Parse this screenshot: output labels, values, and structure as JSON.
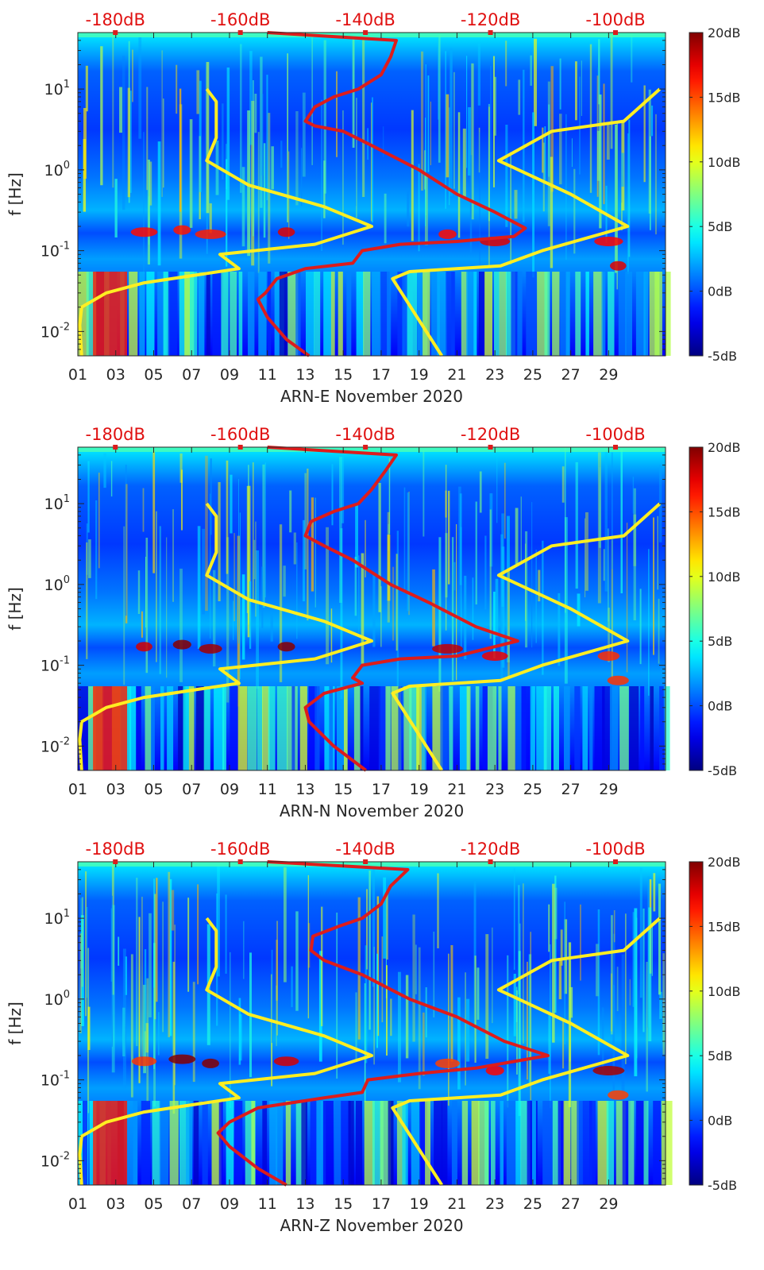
{
  "colors": {
    "curve_red": "#dd1c1c",
    "curve_yellow": "#ffee22",
    "top_axis_text": "#e01010",
    "axis_text": "#262626"
  },
  "colormap": "jet",
  "chart_data": [
    {
      "type": "heatmap",
      "panel": "ARN-E",
      "xlabel": "ARN-E November 2020",
      "ylabel": "f [Hz]",
      "x_ticks": [
        "01",
        "03",
        "05",
        "07",
        "09",
        "11",
        "13",
        "15",
        "17",
        "19",
        "21",
        "23",
        "25",
        "27",
        "29"
      ],
      "y_ticks": [
        "10^-2",
        "10^-1",
        "10^0",
        "10^1"
      ],
      "ylim": [
        0.005,
        50
      ],
      "y_scale": "log",
      "top_axis_ticks": [
        "-180dB",
        "-160dB",
        "-140dB",
        "-120dB",
        "-100dB"
      ],
      "top_axis_range": [
        -186,
        -92
      ],
      "colorbar_ticks": [
        "20dB",
        "15dB",
        "10dB",
        "5dB",
        "0dB",
        "-5dB"
      ],
      "colorbar_range": [
        -5,
        20
      ],
      "series": [
        {
          "color": "red",
          "points": [
            [
              12.2,
              0.005
            ],
            [
              11.0,
              0.008
            ],
            [
              10.0,
              0.015
            ],
            [
              9.5,
              0.025
            ],
            [
              9.9,
              0.03
            ],
            [
              10.5,
              0.045
            ],
            [
              12.0,
              0.06
            ],
            [
              14.5,
              0.07
            ],
            [
              15.0,
              0.1
            ],
            [
              17.0,
              0.12
            ],
            [
              20.0,
              0.13
            ],
            [
              23.0,
              0.15
            ],
            [
              23.6,
              0.19
            ],
            [
              22.0,
              0.3
            ],
            [
              20.0,
              0.5
            ],
            [
              18.0,
              1.0
            ],
            [
              15.5,
              2.0
            ],
            [
              14.0,
              3.0
            ],
            [
              12.5,
              3.5
            ],
            [
              12.0,
              4.0
            ],
            [
              12.5,
              6.0
            ],
            [
              13.5,
              8.0
            ],
            [
              14.8,
              10.0
            ],
            [
              16.0,
              15.0
            ],
            [
              16.5,
              25.0
            ],
            [
              16.8,
              40.0
            ],
            [
              10.0,
              50.0
            ]
          ]
        },
        {
          "color": "yellow",
          "points": [
            [
              0.2,
              0.005
            ],
            [
              0.1,
              0.012
            ],
            [
              0.2,
              0.02
            ],
            [
              1.5,
              0.03
            ],
            [
              3.5,
              0.04
            ],
            [
              8.5,
              0.06
            ],
            [
              7.5,
              0.09
            ],
            [
              12.5,
              0.12
            ],
            [
              15.5,
              0.2
            ],
            [
              13.0,
              0.35
            ],
            [
              9.0,
              0.65
            ],
            [
              6.8,
              1.3
            ],
            [
              7.3,
              2.5
            ],
            [
              7.3,
              7.0
            ],
            [
              6.8,
              10.0
            ]
          ]
        },
        {
          "color": "yellow",
          "points": [
            [
              19.2,
              0.005
            ],
            [
              16.6,
              0.045
            ],
            [
              17.5,
              0.055
            ],
            [
              22.3,
              0.065
            ],
            [
              24.5,
              0.1
            ],
            [
              29.0,
              0.2
            ],
            [
              26.0,
              0.5
            ],
            [
              22.2,
              1.3
            ],
            [
              25.0,
              3.0
            ],
            [
              28.8,
              4.0
            ],
            [
              30.7,
              10.0
            ]
          ]
        }
      ]
    },
    {
      "type": "heatmap",
      "panel": "ARN-N",
      "xlabel": "ARN-N November 2020",
      "ylabel": "f [Hz]",
      "x_ticks": [
        "01",
        "03",
        "05",
        "07",
        "09",
        "11",
        "13",
        "15",
        "17",
        "19",
        "21",
        "23",
        "25",
        "27",
        "29"
      ],
      "y_ticks": [
        "10^-2",
        "10^-1",
        "10^0",
        "10^1"
      ],
      "ylim": [
        0.005,
        50
      ],
      "y_scale": "log",
      "top_axis_ticks": [
        "-180dB",
        "-160dB",
        "-140dB",
        "-120dB",
        "-100dB"
      ],
      "top_axis_range": [
        -186,
        -92
      ],
      "colorbar_ticks": [
        "20dB",
        "15dB",
        "10dB",
        "5dB",
        "0dB",
        "-5dB"
      ],
      "colorbar_range": [
        -5,
        20
      ],
      "series": [
        {
          "color": "red",
          "points": [
            [
              15.2,
              0.005
            ],
            [
              13.5,
              0.01
            ],
            [
              12.2,
              0.02
            ],
            [
              12.0,
              0.03
            ],
            [
              13.0,
              0.045
            ],
            [
              15.0,
              0.06
            ],
            [
              14.5,
              0.07
            ],
            [
              15.0,
              0.1
            ],
            [
              17.0,
              0.12
            ],
            [
              20.0,
              0.13
            ],
            [
              23.2,
              0.2
            ],
            [
              21.0,
              0.3
            ],
            [
              18.5,
              0.6
            ],
            [
              16.5,
              1.0
            ],
            [
              14.5,
              2.0
            ],
            [
              13.0,
              3.0
            ],
            [
              12.0,
              4.0
            ],
            [
              12.3,
              6.0
            ],
            [
              13.5,
              8.0
            ],
            [
              14.8,
              10.0
            ],
            [
              15.5,
              15.0
            ],
            [
              16.2,
              25.0
            ],
            [
              16.8,
              40.0
            ],
            [
              10.0,
              50.0
            ]
          ]
        },
        {
          "color": "yellow",
          "points": [
            [
              0.2,
              0.005
            ],
            [
              0.1,
              0.012
            ],
            [
              0.2,
              0.02
            ],
            [
              1.5,
              0.03
            ],
            [
              3.5,
              0.04
            ],
            [
              8.5,
              0.06
            ],
            [
              7.5,
              0.09
            ],
            [
              12.5,
              0.12
            ],
            [
              15.5,
              0.2
            ],
            [
              13.0,
              0.35
            ],
            [
              9.0,
              0.65
            ],
            [
              6.8,
              1.3
            ],
            [
              7.3,
              2.5
            ],
            [
              7.3,
              7.0
            ],
            [
              6.8,
              10.0
            ]
          ]
        },
        {
          "color": "yellow",
          "points": [
            [
              19.2,
              0.005
            ],
            [
              16.6,
              0.045
            ],
            [
              17.5,
              0.055
            ],
            [
              22.3,
              0.065
            ],
            [
              24.5,
              0.1
            ],
            [
              29.0,
              0.2
            ],
            [
              26.0,
              0.5
            ],
            [
              22.2,
              1.3
            ],
            [
              25.0,
              3.0
            ],
            [
              28.8,
              4.0
            ],
            [
              30.7,
              10.0
            ]
          ]
        }
      ]
    },
    {
      "type": "heatmap",
      "panel": "ARN-Z",
      "xlabel": "ARN-Z November 2020",
      "ylabel": "f [Hz]",
      "x_ticks": [
        "01",
        "03",
        "05",
        "07",
        "09",
        "11",
        "13",
        "15",
        "17",
        "19",
        "21",
        "23",
        "25",
        "27",
        "29"
      ],
      "y_ticks": [
        "10^-2",
        "10^-1",
        "10^0",
        "10^1"
      ],
      "ylim": [
        0.005,
        50
      ],
      "y_scale": "log",
      "top_axis_ticks": [
        "-180dB",
        "-160dB",
        "-140dB",
        "-120dB",
        "-100dB"
      ],
      "top_axis_range": [
        -186,
        -92
      ],
      "colorbar_ticks": [
        "20dB",
        "15dB",
        "10dB",
        "5dB",
        "0dB",
        "-5dB"
      ],
      "colorbar_range": [
        -5,
        20
      ],
      "series": [
        {
          "color": "red",
          "points": [
            [
              11.0,
              0.005
            ],
            [
              9.5,
              0.008
            ],
            [
              8.0,
              0.015
            ],
            [
              7.4,
              0.022
            ],
            [
              8.0,
              0.03
            ],
            [
              9.5,
              0.045
            ],
            [
              13.0,
              0.06
            ],
            [
              15.0,
              0.07
            ],
            [
              15.3,
              0.1
            ],
            [
              18.0,
              0.12
            ],
            [
              21.0,
              0.14
            ],
            [
              24.8,
              0.2
            ],
            [
              22.5,
              0.3
            ],
            [
              20.0,
              0.6
            ],
            [
              17.5,
              1.0
            ],
            [
              15.0,
              2.0
            ],
            [
              13.0,
              3.0
            ],
            [
              12.3,
              4.0
            ],
            [
              12.4,
              6.0
            ],
            [
              13.8,
              8.0
            ],
            [
              15.0,
              10.0
            ],
            [
              16.0,
              15.0
            ],
            [
              16.5,
              25.0
            ],
            [
              17.4,
              40.0
            ],
            [
              10.0,
              50.0
            ]
          ]
        },
        {
          "color": "yellow",
          "points": [
            [
              0.2,
              0.005
            ],
            [
              0.1,
              0.012
            ],
            [
              0.2,
              0.02
            ],
            [
              1.5,
              0.03
            ],
            [
              3.5,
              0.04
            ],
            [
              8.5,
              0.06
            ],
            [
              7.5,
              0.09
            ],
            [
              12.5,
              0.12
            ],
            [
              15.5,
              0.2
            ],
            [
              13.0,
              0.35
            ],
            [
              9.0,
              0.65
            ],
            [
              6.8,
              1.3
            ],
            [
              7.3,
              2.5
            ],
            [
              7.3,
              7.0
            ],
            [
              6.8,
              10.0
            ]
          ]
        },
        {
          "color": "yellow",
          "points": [
            [
              19.2,
              0.005
            ],
            [
              16.6,
              0.045
            ],
            [
              17.5,
              0.055
            ],
            [
              22.3,
              0.065
            ],
            [
              24.5,
              0.1
            ],
            [
              29.0,
              0.2
            ],
            [
              26.0,
              0.5
            ],
            [
              22.2,
              1.3
            ],
            [
              25.0,
              3.0
            ],
            [
              28.8,
              4.0
            ],
            [
              30.7,
              10.0
            ]
          ]
        }
      ]
    }
  ]
}
